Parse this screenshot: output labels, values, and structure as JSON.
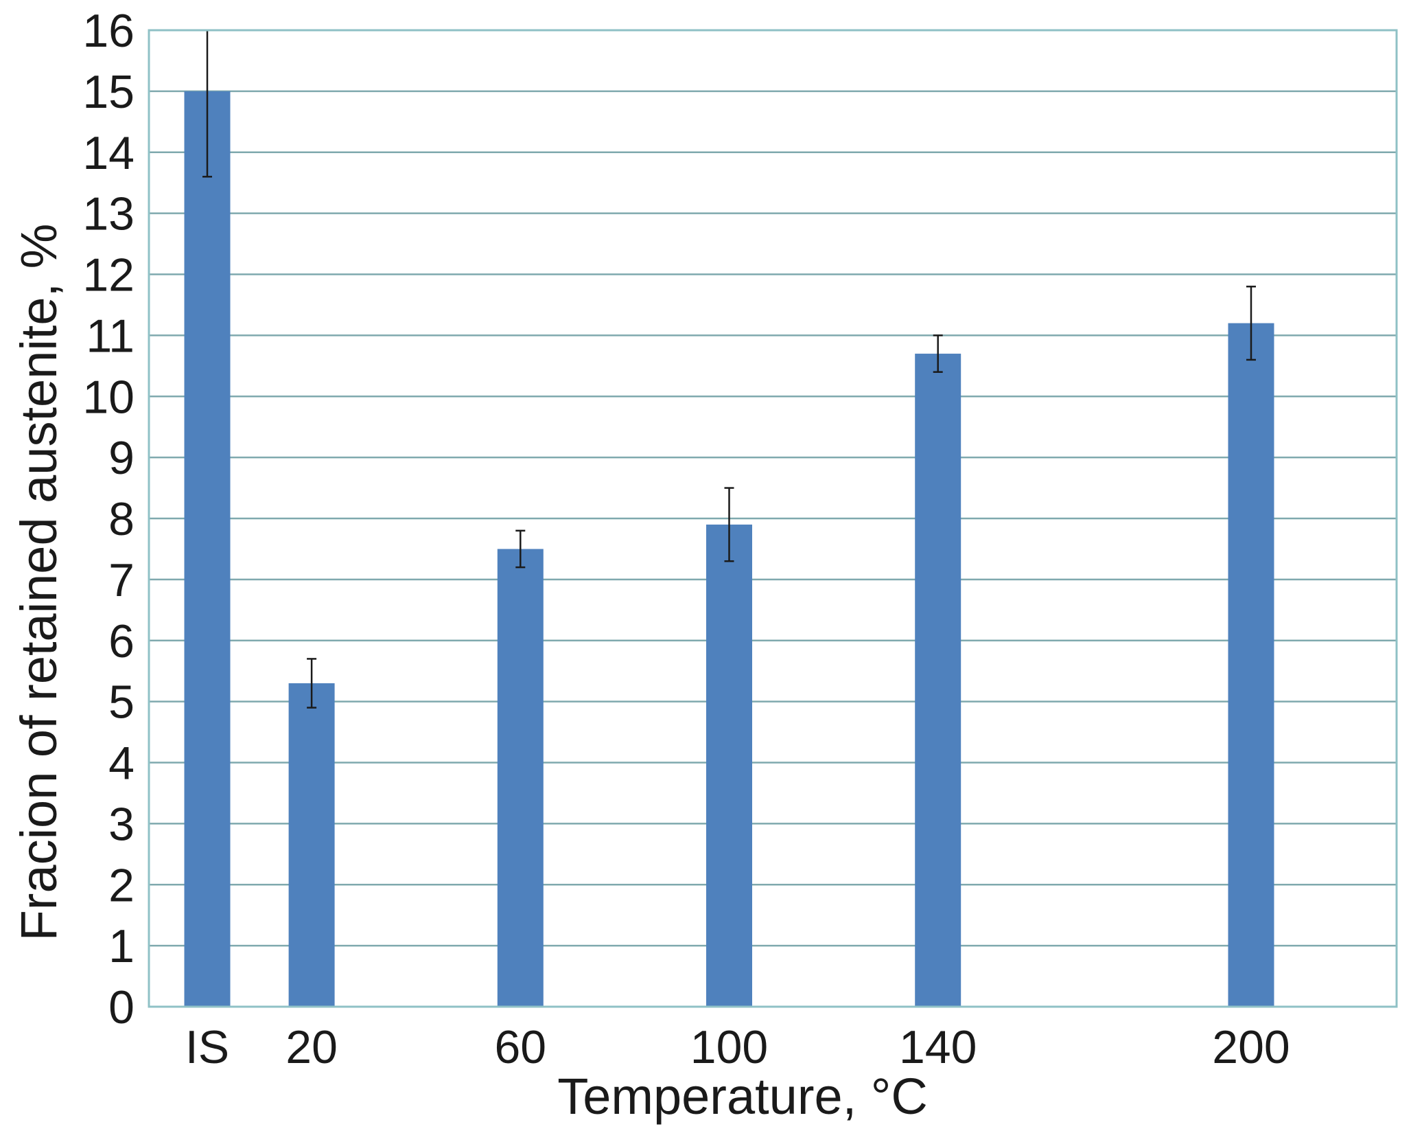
{
  "chart_data": {
    "type": "bar",
    "categories": [
      "IS",
      "20",
      "60",
      "100",
      "140",
      "200"
    ],
    "category_positions": [
      0,
      20,
      60,
      100,
      140,
      200
    ],
    "values": [
      15.0,
      5.3,
      7.5,
      7.9,
      10.7,
      11.2
    ],
    "error_low": [
      13.6,
      4.9,
      7.2,
      7.3,
      10.4,
      10.6
    ],
    "error_high": [
      16.0,
      5.7,
      7.8,
      8.5,
      11.0,
      11.8
    ],
    "title": "",
    "xlabel": "Temperature, °C",
    "ylabel": "Fracion of retained austenite, %",
    "ylim": [
      0,
      16
    ],
    "yticks": [
      "0",
      "1",
      "2",
      "3",
      "4",
      "5",
      "6",
      "7",
      "8",
      "9",
      "10",
      "11",
      "12",
      "13",
      "14",
      "15",
      "16"
    ],
    "grid": true,
    "legend": "none",
    "colors": {
      "bar": "#4f81bd",
      "grid": "#7fa9ae",
      "frame": "#8fc1c6",
      "error_bar": "#1a1a1a"
    }
  }
}
